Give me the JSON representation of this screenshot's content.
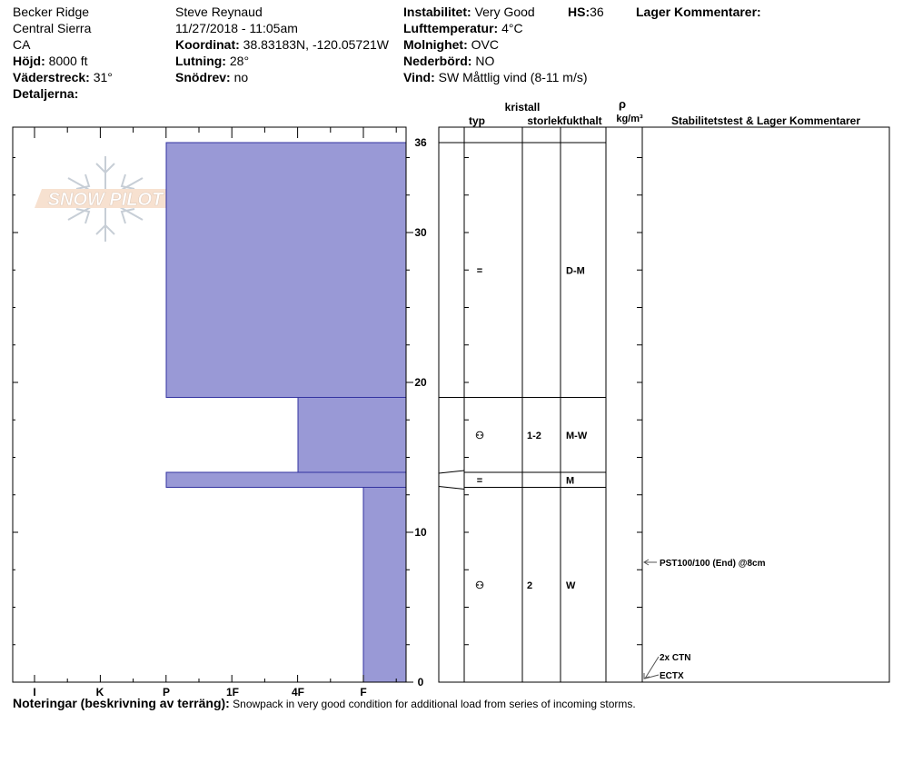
{
  "header": {
    "col1": {
      "location": "Becker Ridge",
      "range": "Central Sierra",
      "state": "CA",
      "elevation_label": "Höjd:",
      "elevation": "8000 ft",
      "aspect_label": "Väderstreck:",
      "aspect": "31°",
      "details_label": "Detaljerna:"
    },
    "col2": {
      "observer": "Steve Reynaud",
      "datetime": "11/27/2018 - 11:05am",
      "coord_label": "Koordinat:",
      "coord": "38.83183N, -120.05721W",
      "slope_label": "Lutning:",
      "slope": "28°",
      "drift_label": "Snödrev:",
      "drift": "no"
    },
    "col3": {
      "instability_label": "Instabilitet:",
      "instability": "Very Good",
      "hs_label": "HS:",
      "hs": "36",
      "airtemp_label": "Lufttemperatur:",
      "airtemp": "4°C",
      "sky_label": "Molnighet:",
      "sky": "OVC",
      "precip_label": "Nederbörd:",
      "precip": "NO",
      "wind_label": "Vind:",
      "wind": "SW  Måttlig vind (8-11 m/s)"
    },
    "col4": {
      "layer_comments_label": "Lager Kommentarer:"
    }
  },
  "logo_text": "SNOW PILOT",
  "columns": {
    "type": "typ",
    "crystal": "kristall",
    "size": "storlek",
    "moisture": "fukthalt",
    "rho": "ρ",
    "density_unit": "kg/m³",
    "stability": "Stabilitetstest & Lager Kommentarer"
  },
  "colors": {
    "fill": "#9999d6",
    "line": "#000000",
    "arrow": "#555555"
  },
  "chart_data": {
    "type": "snow_profile_hardness",
    "y_range": [
      0,
      36
    ],
    "y_ticks": [
      0,
      10,
      20,
      30,
      36
    ],
    "hardness_categories": [
      "I",
      "K",
      "P",
      "1F",
      "4F",
      "F"
    ],
    "layers": [
      {
        "top": 36,
        "bottom": 19,
        "hardness_index": 2,
        "type": "=",
        "size": "",
        "moisture": "D-M"
      },
      {
        "top": 19,
        "bottom": 14,
        "hardness_index": 4,
        "type": "⚇",
        "size": "1-2",
        "moisture": "M-W"
      },
      {
        "top": 14,
        "bottom": 13,
        "hardness_index": 2,
        "type": "=",
        "size": "",
        "moisture": "M"
      },
      {
        "top": 13,
        "bottom": 0,
        "hardness_index": 5,
        "type": "⚇",
        "size": "2",
        "moisture": "W"
      }
    ],
    "tests": [
      {
        "depth": 8,
        "label": "PST100/100 (End) @8cm"
      },
      {
        "depth": 1.7,
        "label": "2x CTN"
      },
      {
        "depth": 0.5,
        "label": "ECTX"
      }
    ]
  },
  "notes": {
    "label": "Noteringar (beskrivning av terräng):",
    "text": " Snowpack in very good condition for additional load from series of incoming storms."
  }
}
